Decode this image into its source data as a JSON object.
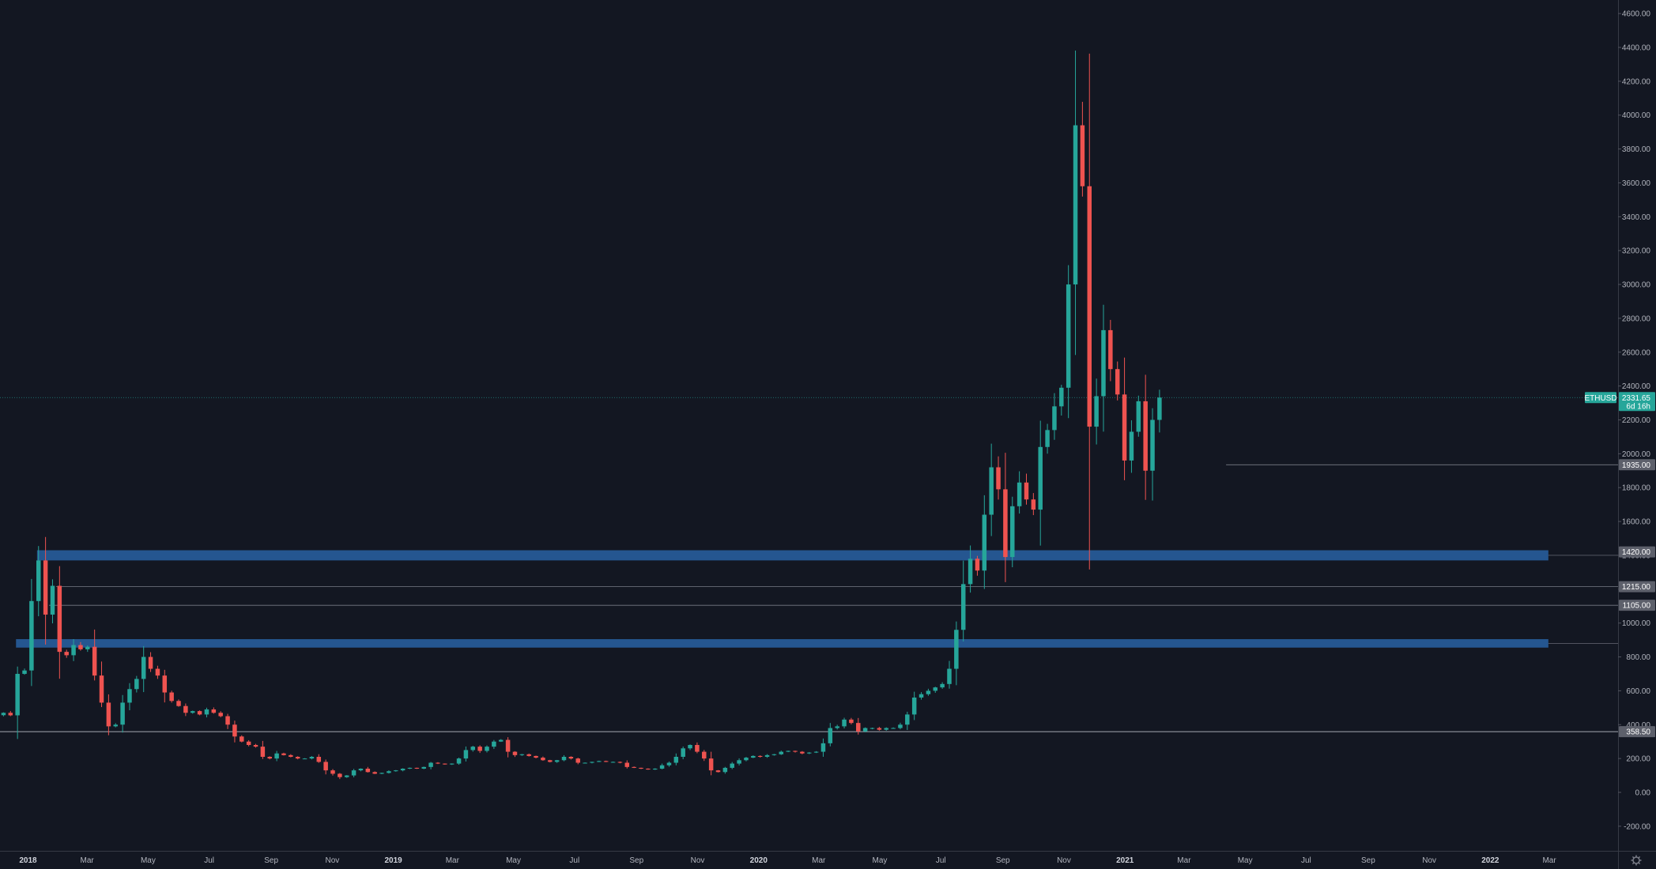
{
  "colors": {
    "background": "#131722",
    "up": "#26a69a",
    "down": "#ef5350",
    "zone": "#2962a3",
    "level_line": "#787b86",
    "axis_text": "#b2b5be",
    "price_tag": "#26a69a",
    "level_tag": "#5d606b"
  },
  "symbol": "ETHUSD",
  "last_price": "2331.65",
  "countdown": "6d 16h",
  "settings_icon": "gear-icon",
  "chart_data": {
    "type": "candlestick",
    "interval": "weekly",
    "ylim": [
      -300,
      4650
    ],
    "y_ticks": [
      "-200.00",
      "0.00",
      "200.00",
      "400.00",
      "600.00",
      "800.00",
      "1000.00",
      "1200.00",
      "1400.00",
      "1600.00",
      "1800.00",
      "2000.00",
      "2200.00",
      "2400.00",
      "2600.00",
      "2800.00",
      "3000.00",
      "3200.00",
      "3400.00",
      "3600.00",
      "3800.00",
      "4000.00",
      "4200.00",
      "4400.00",
      "4600.00"
    ],
    "x_range": [
      "2017-12-04",
      "2022-03-27"
    ],
    "x_ticks": [
      {
        "date": "2018-01-01",
        "label": "2018",
        "major": true
      },
      {
        "date": "2018-03-01",
        "label": "Mar",
        "major": false
      },
      {
        "date": "2018-05-01",
        "label": "May",
        "major": false
      },
      {
        "date": "2018-07-01",
        "label": "Jul",
        "major": false
      },
      {
        "date": "2018-09-01",
        "label": "Sep",
        "major": false
      },
      {
        "date": "2018-11-01",
        "label": "Nov",
        "major": false
      },
      {
        "date": "2019-01-01",
        "label": "2019",
        "major": true
      },
      {
        "date": "2019-03-01",
        "label": "Mar",
        "major": false
      },
      {
        "date": "2019-05-01",
        "label": "May",
        "major": false
      },
      {
        "date": "2019-07-01",
        "label": "Jul",
        "major": false
      },
      {
        "date": "2019-09-01",
        "label": "Sep",
        "major": false
      },
      {
        "date": "2019-11-01",
        "label": "Nov",
        "major": false
      },
      {
        "date": "2020-01-01",
        "label": "2020",
        "major": true
      },
      {
        "date": "2020-03-01",
        "label": "Mar",
        "major": false
      },
      {
        "date": "2020-05-01",
        "label": "May",
        "major": false
      },
      {
        "date": "2020-07-01",
        "label": "Jul",
        "major": false
      },
      {
        "date": "2020-09-01",
        "label": "Sep",
        "major": false
      },
      {
        "date": "2020-11-01",
        "label": "Nov",
        "major": false
      },
      {
        "date": "2021-01-01",
        "label": "2021",
        "major": true
      },
      {
        "date": "2021-03-01",
        "label": "Mar",
        "major": false
      },
      {
        "date": "2021-05-01",
        "label": "May",
        "major": false
      },
      {
        "date": "2021-07-01",
        "label": "Jul",
        "major": false
      },
      {
        "date": "2021-09-01",
        "label": "Sep",
        "major": false
      },
      {
        "date": "2021-11-01",
        "label": "Nov",
        "major": false
      },
      {
        "date": "2022-01-01",
        "label": "2022",
        "major": true
      },
      {
        "date": "2022-03-01",
        "label": "Mar",
        "major": false
      }
    ],
    "series_start": "2017-12-04",
    "weekly_closes": [
      470,
      455,
      700,
      720,
      1130,
      1370,
      1050,
      1220,
      830,
      810,
      870,
      845,
      860,
      690,
      530,
      390,
      400,
      530,
      610,
      670,
      800,
      730,
      690,
      590,
      540,
      510,
      470,
      480,
      460,
      490,
      470,
      450,
      400,
      330,
      300,
      280,
      270,
      210,
      200,
      230,
      220,
      210,
      200,
      200,
      210,
      180,
      130,
      110,
      90,
      100,
      130,
      140,
      120,
      110,
      115,
      125,
      130,
      140,
      145,
      140,
      150,
      175,
      170,
      165,
      170,
      200,
      250,
      270,
      245,
      270,
      300,
      310,
      240,
      220,
      225,
      215,
      205,
      190,
      180,
      190,
      210,
      200,
      175,
      175,
      180,
      185,
      180,
      180,
      175,
      150,
      145,
      140,
      135,
      140,
      160,
      175,
      210,
      260,
      280,
      240,
      200,
      130,
      120,
      145,
      170,
      190,
      205,
      215,
      210,
      220,
      225,
      240,
      245,
      240,
      230,
      235,
      240,
      290,
      380,
      390,
      430,
      410,
      360,
      380,
      380,
      370,
      380,
      380,
      400,
      460,
      560,
      580,
      600,
      620,
      640,
      730,
      960,
      1230,
      1380,
      1310,
      1640,
      1920,
      1790,
      1390,
      1690,
      1830,
      1730,
      1670,
      2040,
      2140,
      2280,
      2390,
      3000,
      3940,
      3580,
      2160,
      2340,
      2730,
      2500,
      2350,
      1960,
      2130,
      2310,
      1900,
      2200,
      2331.65
    ],
    "levels": [
      {
        "price": 1935,
        "label": "1935.00",
        "x_start": "2021-04-12"
      },
      {
        "price": 1215,
        "label": "1215.00",
        "x_start": "2018-01-29"
      },
      {
        "price": 1105,
        "label": "1105.00",
        "x_start": "2018-01-22"
      },
      {
        "price": 358.5,
        "label": "358.50",
        "x_start": "2017-12-04"
      }
    ],
    "zones": [
      {
        "low": 1370,
        "high": 1430,
        "x_start": "2018-01-10",
        "x_end": "2022-02-28",
        "label": "1420.00"
      },
      {
        "low": 855,
        "high": 905,
        "x_start": "2017-12-20",
        "x_end": "2022-02-28"
      }
    ],
    "current_price_line": 2331.65
  }
}
